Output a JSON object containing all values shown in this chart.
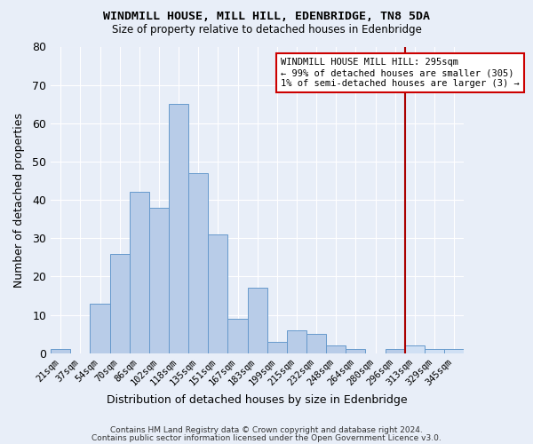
{
  "title": "WINDMILL HOUSE, MILL HILL, EDENBRIDGE, TN8 5DA",
  "subtitle": "Size of property relative to detached houses in Edenbridge",
  "xlabel": "Distribution of detached houses by size in Edenbridge",
  "ylabel": "Number of detached properties",
  "categories": [
    "21sqm",
    "37sqm",
    "54sqm",
    "70sqm",
    "86sqm",
    "102sqm",
    "118sqm",
    "135sqm",
    "151sqm",
    "167sqm",
    "183sqm",
    "199sqm",
    "215sqm",
    "232sqm",
    "248sqm",
    "264sqm",
    "280sqm",
    "296sqm",
    "313sqm",
    "329sqm",
    "345sqm"
  ],
  "values": [
    1,
    0,
    13,
    26,
    42,
    38,
    65,
    47,
    31,
    9,
    17,
    3,
    6,
    5,
    2,
    1,
    0,
    1,
    2,
    1,
    1
  ],
  "bar_color_main": "#b8cce8",
  "bar_color_highlight": "#d0e0f4",
  "bar_edge_color": "#6699cc",
  "background_color": "#e8eef8",
  "grid_color": "#ffffff",
  "vline_x_index": 17,
  "vline_color": "#aa0000",
  "annotation_text": "WINDMILL HOUSE MILL HILL: 295sqm\n← 99% of detached houses are smaller (305)\n1% of semi-detached houses are larger (3) →",
  "annotation_box_color": "#ffffff",
  "annotation_box_edge_color": "#cc0000",
  "ylim": [
    0,
    80
  ],
  "yticks": [
    0,
    10,
    20,
    30,
    40,
    50,
    60,
    70,
    80
  ],
  "footer_line1": "Contains HM Land Registry data © Crown copyright and database right 2024.",
  "footer_line2": "Contains public sector information licensed under the Open Government Licence v3.0."
}
